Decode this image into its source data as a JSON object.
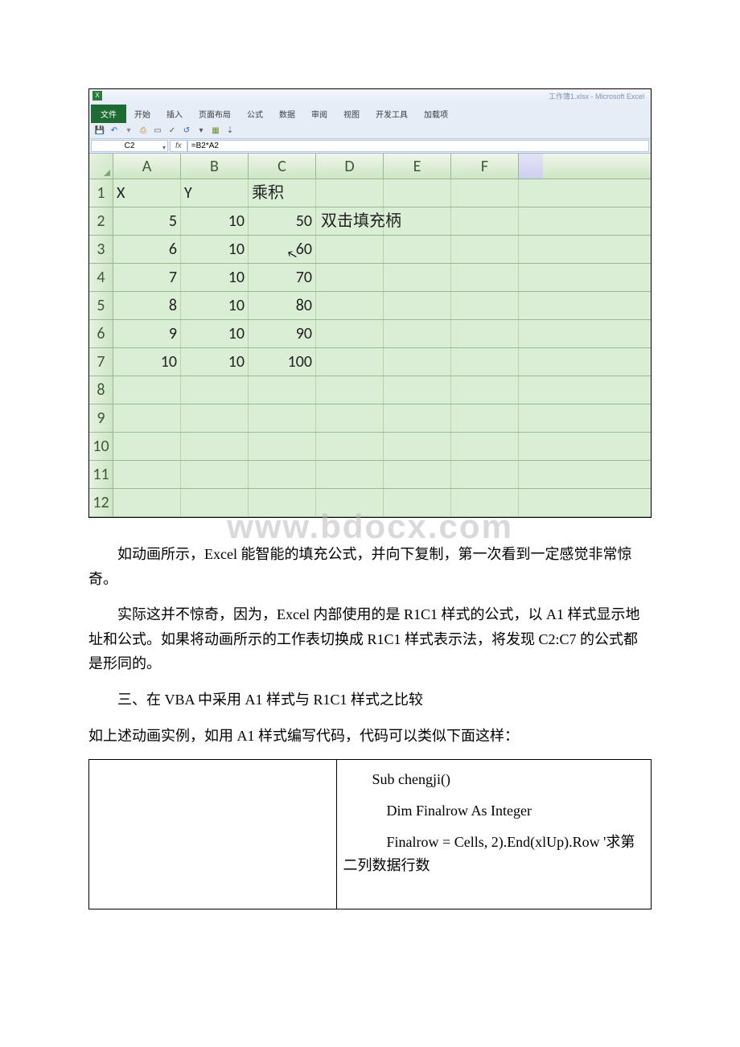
{
  "excel": {
    "titlebar": "工作簿1.xlsx - Microsoft Excel",
    "tabs": {
      "file": "文件",
      "home": "开始",
      "insert": "插入",
      "layout": "页面布局",
      "formulas": "公式",
      "data": "数据",
      "review": "审阅",
      "view": "视图",
      "developer": "开发工具",
      "addins": "加载项"
    },
    "name_box": "C2",
    "fx_label": "fx",
    "formula": "=B2*A2",
    "col_headers": [
      "A",
      "B",
      "C",
      "D",
      "E",
      "F"
    ],
    "row_headers": [
      "1",
      "2",
      "3",
      "4",
      "5",
      "6",
      "7",
      "8",
      "9",
      "10",
      "11",
      "12"
    ],
    "data_rows": [
      {
        "a": "X",
        "b": "Y",
        "c": "乘积",
        "d": "",
        "e": "",
        "f": ""
      },
      {
        "a": "5",
        "b": "10",
        "c": "50",
        "d": "双击填充柄",
        "e": "",
        "f": ""
      },
      {
        "a": "6",
        "b": "10",
        "c": "60",
        "d": "",
        "e": "",
        "f": ""
      },
      {
        "a": "7",
        "b": "10",
        "c": "70",
        "d": "",
        "e": "",
        "f": ""
      },
      {
        "a": "8",
        "b": "10",
        "c": "80",
        "d": "",
        "e": "",
        "f": ""
      },
      {
        "a": "9",
        "b": "10",
        "c": "90",
        "d": "",
        "e": "",
        "f": ""
      },
      {
        "a": "10",
        "b": "10",
        "c": "100",
        "d": "",
        "e": "",
        "f": ""
      },
      {
        "a": "",
        "b": "",
        "c": "",
        "d": "",
        "e": "",
        "f": ""
      },
      {
        "a": "",
        "b": "",
        "c": "",
        "d": "",
        "e": "",
        "f": ""
      },
      {
        "a": "",
        "b": "",
        "c": "",
        "d": "",
        "e": "",
        "f": ""
      },
      {
        "a": "",
        "b": "",
        "c": "",
        "d": "",
        "e": "",
        "f": ""
      },
      {
        "a": "",
        "b": "",
        "c": "",
        "d": "",
        "e": "",
        "f": ""
      }
    ],
    "watermark": "www.bdocx.com"
  },
  "article": {
    "p1": "如动画所示，Excel 能智能的填充公式，并向下复制，第一次看到一定感觉非常惊奇。",
    "p2": "实际这并不惊奇，因为，Excel 内部使用的是 R1C1 样式的公式，以 A1 样式显示地址和公式。如果将动画所示的工作表切换成 R1C1 样式表示法，将发现 C2:C7 的公式都是形同的。",
    "p3": "三、在 VBA 中采用 A1 样式与 R1C1 样式之比较",
    "p4": "如上述动画实例，如用 A1 样式编写代码，代码可以类似下面这样：",
    "code": {
      "l1": "Sub chengji()",
      "l2": "Dim Finalrow As Integer",
      "l3": "Finalrow = Cells, 2).End(xlUp).Row '求第二列数据行数"
    }
  },
  "colors": {
    "sheet_bg": "#d9eed4",
    "header_grad_from": "#f0f6ea",
    "header_grad_to": "#cde6c5",
    "grid_line": "#9ab993",
    "ribbon_bg": "#e6edf7",
    "file_tab": "#1e6b34"
  }
}
